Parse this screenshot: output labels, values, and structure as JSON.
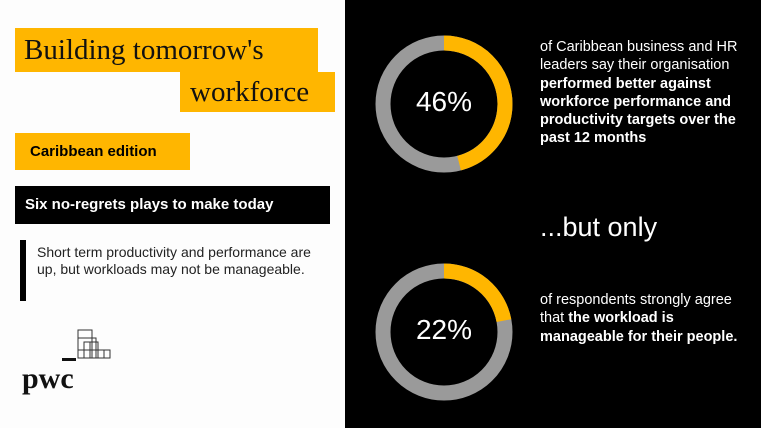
{
  "title": {
    "line1": "Building tomorrow's",
    "line2": "workforce"
  },
  "edition": "Caribbean edition",
  "plays": "Six no-regrets plays to make today",
  "quote": "Short term productivity and performance are up, but workloads may not be manageable.",
  "logo": {
    "text": "pwc"
  },
  "stats": [
    {
      "value": 46,
      "label": "46%",
      "text_plain": "of Caribbean business and HR leaders say their organisation ",
      "text_bold": "performed better against workforce performance and productivity targets over the past 12 months",
      "text_after": ""
    },
    {
      "value": 22,
      "label": "22%",
      "text_plain": "of respondents strongly agree that ",
      "text_bold": "the workload is manageable for their people.",
      "text_after": ""
    }
  ],
  "connector": "...but only",
  "colors": {
    "accent": "#ffb600",
    "ring": "#9a9a9a",
    "background_dark": "#000000"
  }
}
